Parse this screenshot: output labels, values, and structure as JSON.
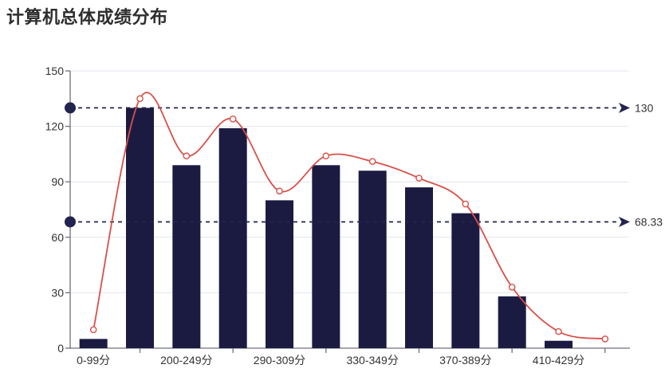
{
  "chart_data": {
    "type": "bar",
    "title": "计算机总体成绩分布",
    "categories": [
      "0-99分",
      "",
      "200-249分",
      "",
      "290-309分",
      "",
      "330-349分",
      "",
      "370-389分",
      "",
      "410-429分",
      ""
    ],
    "series": [
      {
        "name": "score-count-bars",
        "type": "bar",
        "color": "#1b1b42",
        "values": [
          5,
          130,
          99,
          119,
          80,
          99,
          96,
          87,
          73,
          28,
          4,
          0
        ]
      },
      {
        "name": "score-trend-line",
        "type": "line",
        "smooth": true,
        "color": "#d9504a",
        "marker": "hollow-circle",
        "values": [
          10,
          135,
          104,
          124,
          85,
          104,
          101,
          92,
          78,
          33,
          9,
          5
        ]
      }
    ],
    "yticks": [
      0,
      30,
      60,
      90,
      120,
      150
    ],
    "ylim": [
      0,
      150
    ],
    "grid": true,
    "legend_position": "none",
    "reference_lines": [
      {
        "value": 130,
        "label": "130",
        "style": "dashed"
      },
      {
        "value": 68.33,
        "label": "68.33",
        "style": "dashed"
      }
    ]
  },
  "colors": {
    "bar": "#1b1b42",
    "line": "#d9504a",
    "line_marker_fill": "#ffffff",
    "reference": "#23234f",
    "grid": "#e2e4ec",
    "axis": "#6e7079",
    "axis_text": "#333333",
    "title_text": "#2e2e2e"
  }
}
